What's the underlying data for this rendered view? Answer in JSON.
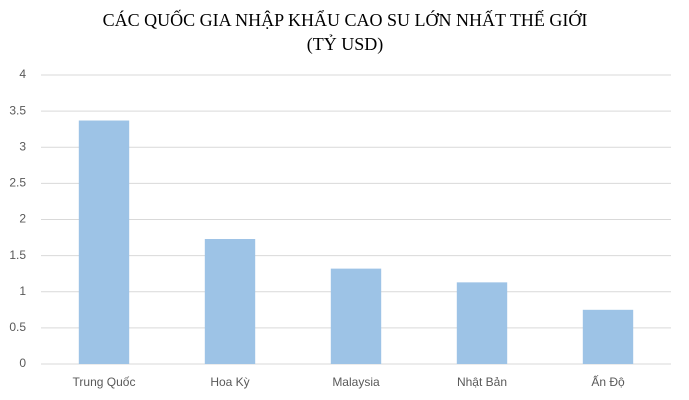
{
  "chart_data": {
    "type": "bar",
    "title": "CÁC QUỐC GIA NHẬP KHẨU CAO SU LỚN NHẤT THẾ GIỚI",
    "subtitle": "(TỶ USD)",
    "categories": [
      "Trung Quốc",
      "Hoa Kỳ",
      "Malaysia",
      "Nhật Bản",
      "Ấn Độ"
    ],
    "values": [
      3.37,
      1.73,
      1.32,
      1.13,
      0.75
    ],
    "color": "#9dc3e6",
    "ylim": [
      0,
      4
    ],
    "yticks": [
      0,
      0.5,
      1,
      1.5,
      2,
      2.5,
      3,
      3.5,
      4
    ],
    "grid": true
  }
}
